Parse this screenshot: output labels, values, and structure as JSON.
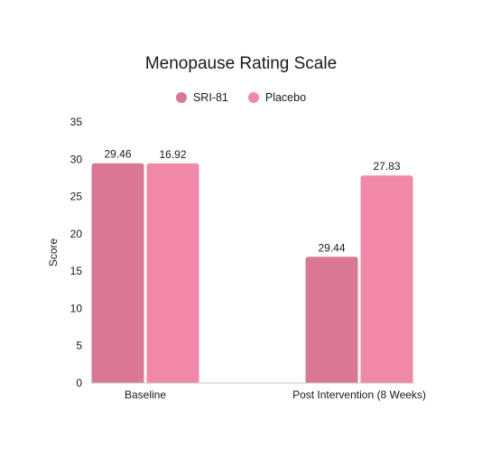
{
  "chart_data": {
    "type": "bar",
    "title": "Menopause Rating Scale",
    "xlabel": "",
    "ylabel": "Score",
    "ylim": [
      0,
      35
    ],
    "yticks": [
      0,
      5,
      10,
      15,
      20,
      25,
      30,
      35
    ],
    "categories": [
      "Baseline",
      "Post Intervention (8 Weeks)"
    ],
    "series": [
      {
        "name": "SRI-81",
        "values": [
          29.46,
          16.92
        ],
        "color": "#d97795"
      },
      {
        "name": "Placebo",
        "values": [
          29.44,
          27.83
        ],
        "color": "#f088a8"
      }
    ],
    "data_labels": [
      "29.46",
      "16.92",
      "29.44",
      "27.83"
    ],
    "legend_position": "top-center",
    "grid": false
  }
}
